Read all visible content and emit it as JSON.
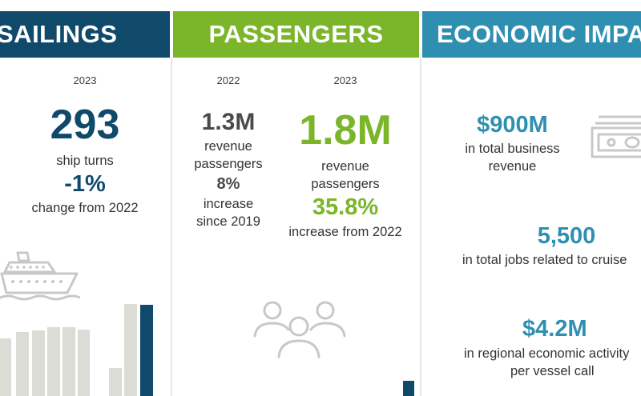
{
  "sailings": {
    "title": "SAILINGS",
    "year": "2023",
    "value": "293",
    "value_label": "ship turns",
    "change": "-1%",
    "change_label": "change from 2022",
    "colors": {
      "header": "#0f4a6b",
      "value": "#0f4a6b",
      "bar": "#dcdcd6",
      "bar_highlight": "#0f4a6b"
    }
  },
  "passengers": {
    "title": "PASSENGERS",
    "left": {
      "year": "2022",
      "value": "1.3M",
      "label_1": "revenue",
      "label_2": "passengers",
      "change": "8%",
      "change_label_1": "increase",
      "change_label_2": "since 2019"
    },
    "right": {
      "year": "2023",
      "value": "1.8M",
      "label_1": "revenue",
      "label_2": "passengers",
      "change": "35.8%",
      "change_label": "increase from 2022"
    },
    "colors": {
      "header": "#7ab52a",
      "accent": "#7ab52a"
    }
  },
  "economic": {
    "title": "ECONOMIC IMPACT",
    "items": [
      {
        "value": "$900M",
        "label_1": "in total business",
        "label_2": "revenue"
      },
      {
        "value": "5,500",
        "label_1": "in total jobs related to cruise",
        "label_2": ""
      },
      {
        "value": "$4.2M",
        "label_1": "in regional economic activity",
        "label_2": "per vessel call"
      }
    ],
    "colors": {
      "header": "#2f8fb1",
      "accent": "#2f8fb1"
    }
  },
  "icons": [
    "cruise-ship-icon",
    "people-group-icon",
    "cash-icon"
  ]
}
